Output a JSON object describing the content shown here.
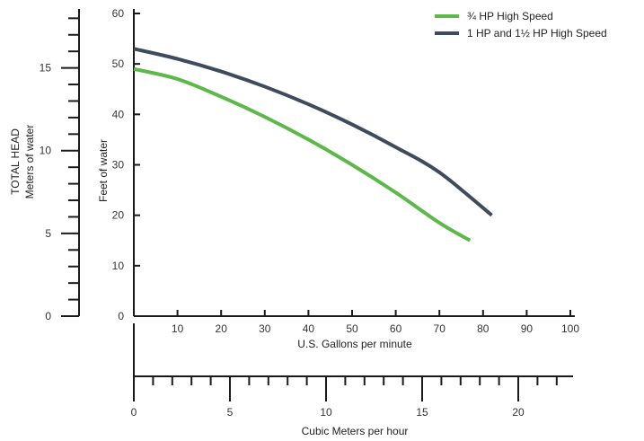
{
  "chart_data": {
    "type": "line",
    "title": "",
    "colors": {
      "axis": "#1a1a1a",
      "series_0": "#5cb848",
      "series_1": "#3d4b5c"
    },
    "series": [
      {
        "name": "¾ HP High Speed",
        "x": [
          0,
          10,
          20,
          30,
          40,
          50,
          60,
          70,
          77
        ],
        "y": [
          49,
          47,
          43.5,
          39.5,
          35,
          30,
          24.5,
          18.5,
          15
        ]
      },
      {
        "name": "1 HP and 1½ HP High Speed",
        "x": [
          0,
          10,
          20,
          30,
          40,
          50,
          60,
          70,
          82
        ],
        "y": [
          53,
          51,
          48.5,
          45.5,
          42,
          38,
          33.5,
          28.5,
          20
        ]
      }
    ],
    "axes": {
      "gpm": {
        "label": "U.S. Gallons per minute",
        "range": [
          0,
          100
        ],
        "ticks": [
          10,
          20,
          30,
          40,
          50,
          60,
          70,
          80,
          90,
          100
        ]
      },
      "feet": {
        "label": "Feet of water",
        "range": [
          0,
          60
        ],
        "ticks": [
          0,
          10,
          20,
          30,
          40,
          50,
          60
        ]
      },
      "meters": {
        "label_line1": "TOTAL HEAD",
        "label_line2": "Meters of water",
        "range": [
          0,
          18.29
        ],
        "ticks": [
          0,
          5,
          10,
          15
        ]
      },
      "cmh": {
        "label": "Cubic Meters per hour",
        "range": [
          0,
          22.71
        ],
        "ticks": [
          0,
          5,
          10,
          15,
          20
        ]
      }
    },
    "legend_position": "top-right",
    "grid": false
  }
}
